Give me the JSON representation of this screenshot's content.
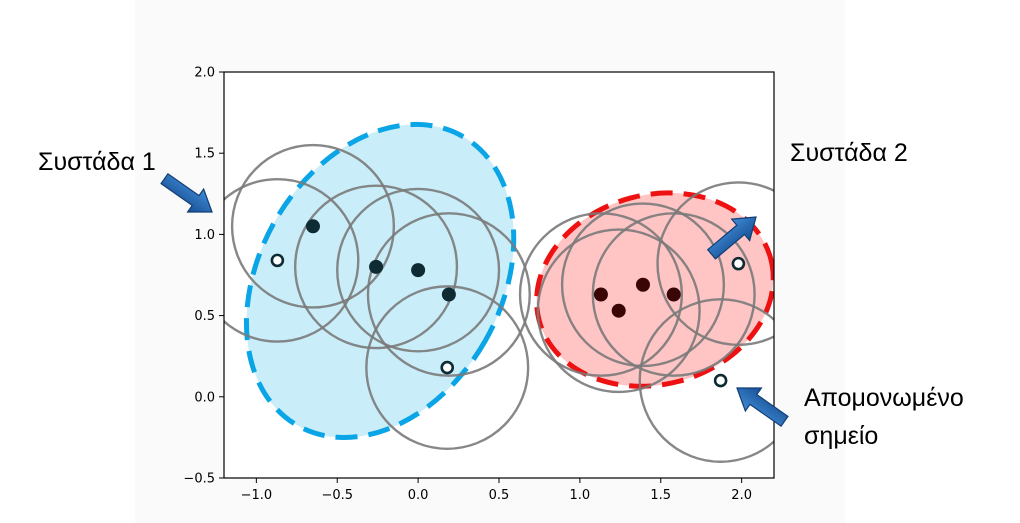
{
  "chart_data": {
    "type": "scatter",
    "title": "",
    "xlabel": "",
    "ylabel": "",
    "xlim": [
      -1.2,
      2.2
    ],
    "ylim": [
      -0.5,
      2.0
    ],
    "xticks": [
      -1.0,
      -0.5,
      0.0,
      0.5,
      1.0,
      1.5,
      2.0
    ],
    "yticks": [
      -0.5,
      0.0,
      0.5,
      1.0,
      1.5,
      2.0
    ],
    "xtick_labels": [
      "−1.0",
      "−0.5",
      "0.0",
      "0.5",
      "1.0",
      "1.5",
      "2.0"
    ],
    "ytick_labels": [
      "−0.5",
      "0.0",
      "0.5",
      "1.0",
      "1.5",
      "2.0"
    ],
    "grid": false,
    "neighborhood_radius": 0.5,
    "core_points": [
      {
        "x": -0.65,
        "y": 1.05,
        "cluster": 1
      },
      {
        "x": -0.26,
        "y": 0.8,
        "cluster": 1
      },
      {
        "x": 0.0,
        "y": 0.78,
        "cluster": 1
      },
      {
        "x": 0.19,
        "y": 0.63,
        "cluster": 1
      },
      {
        "x": 1.13,
        "y": 0.63,
        "cluster": 2
      },
      {
        "x": 1.24,
        "y": 0.53,
        "cluster": 2
      },
      {
        "x": 1.39,
        "y": 0.69,
        "cluster": 2
      },
      {
        "x": 1.58,
        "y": 0.63,
        "cluster": 2
      }
    ],
    "border_points": [
      {
        "x": -0.87,
        "y": 0.84,
        "cluster": 1
      },
      {
        "x": 0.18,
        "y": 0.18,
        "cluster": 1
      },
      {
        "x": 1.98,
        "y": 0.82,
        "cluster": 2
      }
    ],
    "noise_points": [
      {
        "x": 1.87,
        "y": 0.1
      }
    ],
    "clusters": [
      {
        "id": 1,
        "label": "Συστάδα 1",
        "fill": "#c9eef9",
        "stroke": "#0aa5e6"
      },
      {
        "id": 2,
        "label": "Συστάδα 2",
        "fill": "#ffc4c4",
        "stroke": "#ee1111"
      }
    ],
    "circle_color": "#7a7a7a",
    "core_color": "#0e2a33",
    "core_color_cluster2": "#3a0505",
    "arrow_color": "#1f6fbf",
    "annotations": [
      {
        "id": "cluster1",
        "lines": [
          "Συστάδα 1"
        ]
      },
      {
        "id": "cluster2",
        "lines": [
          "Συστάδα 2"
        ]
      },
      {
        "id": "noise",
        "lines": [
          "Απομονωμένο",
          "σημείο"
        ]
      }
    ]
  }
}
